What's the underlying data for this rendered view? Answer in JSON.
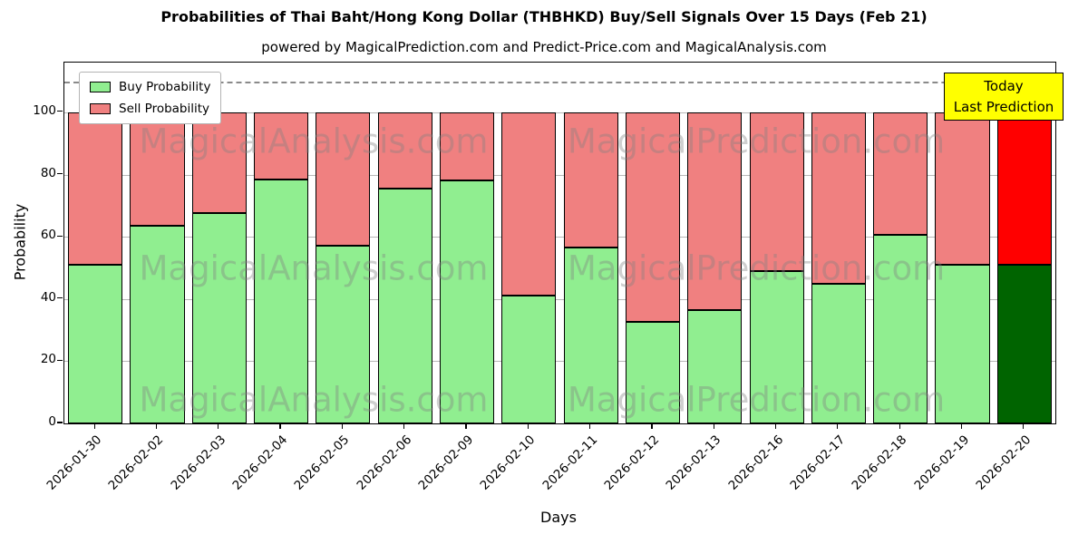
{
  "annotation": {
    "line1": "Today",
    "line2": "Last Prediction",
    "background": "#FFFF00"
  },
  "chart_data": {
    "type": "bar",
    "stacked": true,
    "title": "Probabilities of Thai Baht/Hong Kong Dollar (THBHKD) Buy/Sell Signals Over 15 Days (Feb 21)",
    "subtitle": "powered by MagicalPrediction.com and Predict-Price.com and MagicalAnalysis.com",
    "xlabel": "Days",
    "ylabel": "Probability",
    "ylim": [
      0,
      116
    ],
    "yticks": [
      0,
      20,
      40,
      60,
      80,
      100
    ],
    "dashed_line_y": 110,
    "grid": "horizontal",
    "legend_position": "upper-left",
    "categories": [
      "2026-01-30",
      "2026-02-02",
      "2026-02-03",
      "2026-02-04",
      "2026-02-05",
      "2026-02-06",
      "2026-02-09",
      "2026-02-10",
      "2026-02-11",
      "2026-02-12",
      "2026-02-13",
      "2026-02-16",
      "2026-02-17",
      "2026-02-18",
      "2026-02-19",
      "2026-02-20"
    ],
    "series": [
      {
        "name": "Buy Probability",
        "color": "#90EE90",
        "values": [
          51,
          63.5,
          67.5,
          78.5,
          57,
          75.5,
          78,
          41,
          56.5,
          32.5,
          36.5,
          49,
          45,
          60.5,
          51,
          51
        ]
      },
      {
        "name": "Sell Probability",
        "color": "#F08080",
        "values": [
          49,
          36.5,
          32.5,
          21.5,
          43,
          24.5,
          22,
          59,
          43.5,
          67.5,
          63.5,
          51,
          55,
          39.5,
          49,
          49
        ]
      }
    ],
    "today": {
      "index": 15,
      "buy_color": "#006400",
      "sell_color": "#FF0000"
    },
    "watermarks": [
      "MagicalAnalysis.com",
      "MagicalPrediction.com"
    ]
  }
}
